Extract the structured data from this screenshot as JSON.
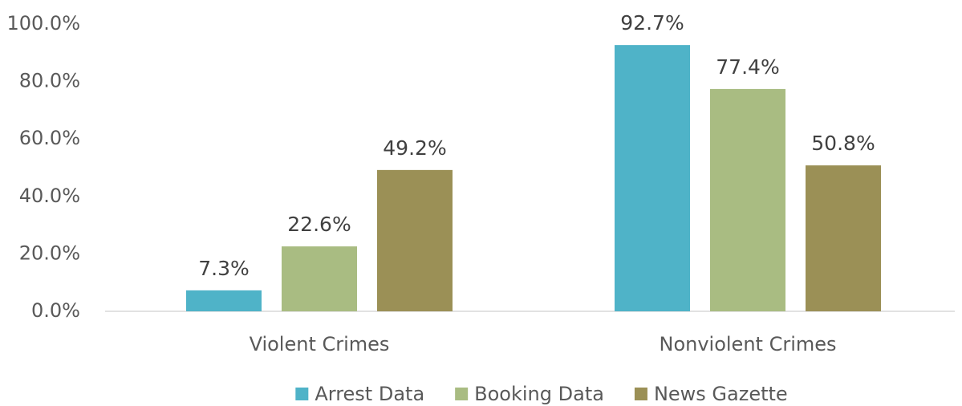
{
  "chart_data": {
    "type": "bar",
    "categories": [
      "Violent Crimes",
      "Nonviolent Crimes"
    ],
    "series": [
      {
        "name": "Arrest Data",
        "color": "#4fb3c8",
        "values": [
          7.3,
          92.7
        ],
        "value_labels": [
          "7.3%",
          "92.7%"
        ]
      },
      {
        "name": "Booking Data",
        "color": "#a9bc82",
        "values": [
          22.6,
          77.4
        ],
        "value_labels": [
          "22.6%",
          "77.4%"
        ]
      },
      {
        "name": "News Gazette",
        "color": "#9b9056",
        "values": [
          49.2,
          50.8
        ],
        "value_labels": [
          "49.2%",
          "50.8%"
        ]
      }
    ],
    "ylim": [
      0,
      100
    ],
    "yticks": [
      {
        "value": 0,
        "label": "0.0%"
      },
      {
        "value": 20,
        "label": "20.0%"
      },
      {
        "value": 40,
        "label": "40.0%"
      },
      {
        "value": 60,
        "label": "60.0%"
      },
      {
        "value": 80,
        "label": "80.0%"
      },
      {
        "value": 100,
        "label": "100.0%"
      }
    ],
    "grid": false,
    "legend": "bottom"
  }
}
